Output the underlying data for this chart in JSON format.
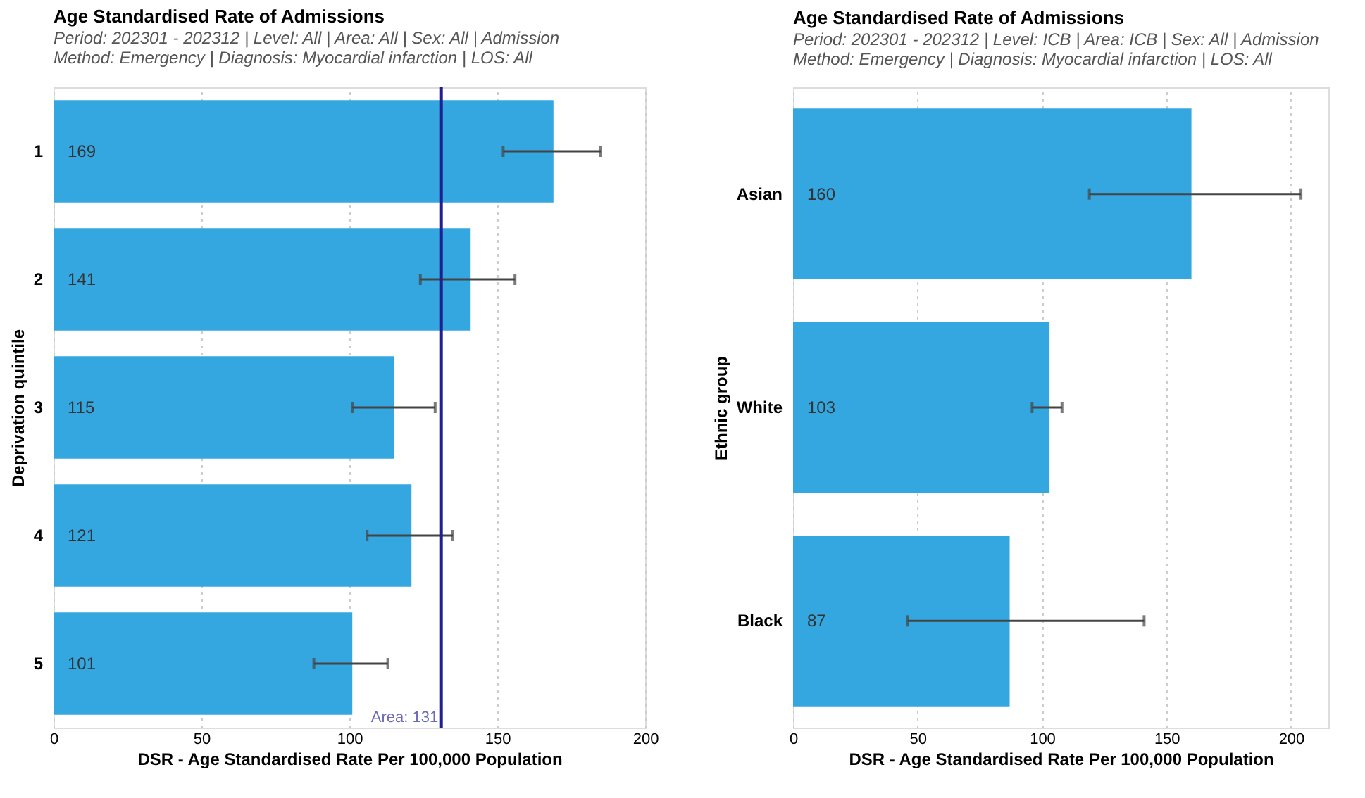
{
  "chart_data": [
    {
      "type": "bar",
      "orientation": "horizontal",
      "title": "Age Standardised Rate of Admissions",
      "subtitle": "Period: 202301 - 202312 | Level: All | Area: All | Sex: All | Admission\nMethod: Emergency | Diagnosis: Myocardial infarction | LOS: All",
      "xlabel": "DSR - Age Standardised Rate Per 100,000 Population",
      "ylabel": "Deprivation quintile",
      "categories": [
        "1",
        "2",
        "3",
        "4",
        "5"
      ],
      "values": [
        169,
        141,
        115,
        121,
        101
      ],
      "color": "#35a7e0",
      "errors": [
        [
          152,
          185
        ],
        [
          124,
          156
        ],
        [
          101,
          129
        ],
        [
          106,
          135
        ],
        [
          88,
          113
        ]
      ],
      "data_labels": true,
      "xlim": [
        0,
        200
      ],
      "xticks": [
        0,
        50,
        100,
        150,
        200
      ],
      "grid": "x",
      "ref_lines": [
        {
          "axis": "x",
          "value": 131,
          "label": "Area: 131",
          "color": "#1f1f8f"
        }
      ]
    },
    {
      "type": "bar",
      "orientation": "horizontal",
      "title": "Age Standardised Rate of Admissions",
      "subtitle": "Period: 202301 - 202312 | Level: ICB | Area: ICB | Sex: All | Admission\nMethod: Emergency | Diagnosis: Myocardial infarction | LOS: All",
      "xlabel": "DSR - Age Standardised Rate Per 100,000 Population",
      "ylabel": "Ethnic group",
      "categories": [
        "Asian",
        "White",
        "Black"
      ],
      "values": [
        160,
        103,
        87
      ],
      "color": "#35a7e0",
      "errors": [
        [
          119,
          204
        ],
        [
          96,
          108
        ],
        [
          46,
          141
        ]
      ],
      "data_labels": true,
      "xlim": [
        0,
        215
      ],
      "xticks": [
        0,
        50,
        100,
        150,
        200
      ],
      "grid": "x"
    }
  ]
}
